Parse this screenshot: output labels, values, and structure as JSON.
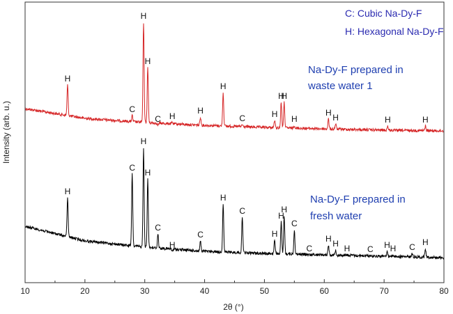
{
  "chart_data": {
    "type": "line",
    "title": "",
    "xlabel": "2θ (°)",
    "ylabel": "Intensity (arb. u.)",
    "xlim": [
      10,
      80
    ],
    "xticks": [
      10,
      20,
      30,
      40,
      50,
      60,
      70,
      80
    ],
    "yticks_shown": false,
    "legend": [
      "C: Cubic Na-Dy-F",
      "H: Hexagonal Na-Dy-F"
    ],
    "legend_position": "top-right",
    "colors": {
      "series_waste": "#d62728",
      "series_fresh": "#000000",
      "legend_text": "#2a2ab0"
    },
    "series": [
      {
        "name": "Na-Dy-F prepared in waste water 1",
        "label_lines": [
          "Na-Dy-F prepared in",
          "waste water 1"
        ],
        "color": "#d62728",
        "baseline": [
          [
            10,
            156
          ],
          [
            20,
            170
          ],
          [
            30,
            176
          ],
          [
            40,
            180
          ],
          [
            50,
            183
          ],
          [
            60,
            185
          ],
          [
            70,
            187
          ],
          [
            80,
            188
          ]
        ],
        "peaks": [
          {
            "x": 17.1,
            "y": 122,
            "label": "H"
          },
          {
            "x": 27.9,
            "y": 166,
            "label": "C"
          },
          {
            "x": 29.8,
            "y": 32,
            "label": "H"
          },
          {
            "x": 30.5,
            "y": 97,
            "label": "H"
          },
          {
            "x": 32.2,
            "y": 180,
            "label": "C"
          },
          {
            "x": 34.6,
            "y": 176,
            "label": "H"
          },
          {
            "x": 39.3,
            "y": 168,
            "label": "H"
          },
          {
            "x": 43.1,
            "y": 133,
            "label": "H"
          },
          {
            "x": 46.3,
            "y": 179,
            "label": "C"
          },
          {
            "x": 51.7,
            "y": 173,
            "label": "H"
          },
          {
            "x": 52.8,
            "y": 147,
            "label": "H"
          },
          {
            "x": 53.3,
            "y": 147,
            "label": "H"
          },
          {
            "x": 55.0,
            "y": 180,
            "label": "H"
          },
          {
            "x": 60.7,
            "y": 171,
            "label": "H"
          },
          {
            "x": 61.9,
            "y": 178,
            "label": "H"
          },
          {
            "x": 70.6,
            "y": 181,
            "label": "H"
          },
          {
            "x": 76.9,
            "y": 181,
            "label": "H"
          }
        ]
      },
      {
        "name": "Na-Dy-F prepared in fresh water",
        "label_lines": [
          "Na-Dy-F prepared in",
          "fresh water"
        ],
        "color": "#000000",
        "baseline": [
          [
            10,
            325
          ],
          [
            20,
            346
          ],
          [
            30,
            355
          ],
          [
            40,
            361
          ],
          [
            50,
            364
          ],
          [
            60,
            366
          ],
          [
            70,
            368
          ],
          [
            80,
            370
          ]
        ],
        "peaks": [
          {
            "x": 17.1,
            "y": 284,
            "label": "H"
          },
          {
            "x": 27.9,
            "y": 250,
            "label": "C"
          },
          {
            "x": 29.8,
            "y": 212,
            "label": "H"
          },
          {
            "x": 30.5,
            "y": 257,
            "label": "H"
          },
          {
            "x": 32.2,
            "y": 336,
            "label": "C"
          },
          {
            "x": 34.6,
            "y": 361,
            "label": "H"
          },
          {
            "x": 39.3,
            "y": 346,
            "label": "C"
          },
          {
            "x": 43.1,
            "y": 293,
            "label": "H"
          },
          {
            "x": 46.3,
            "y": 312,
            "label": "C"
          },
          {
            "x": 51.7,
            "y": 345,
            "label": "H"
          },
          {
            "x": 52.8,
            "y": 319,
            "label": "H"
          },
          {
            "x": 53.3,
            "y": 310,
            "label": "H"
          },
          {
            "x": 55.0,
            "y": 330,
            "label": "C"
          },
          {
            "x": 57.5,
            "y": 366,
            "label": "C"
          },
          {
            "x": 60.7,
            "y": 352,
            "label": "H"
          },
          {
            "x": 61.9,
            "y": 359,
            "label": "H"
          },
          {
            "x": 63.8,
            "y": 366,
            "label": "H"
          },
          {
            "x": 67.7,
            "y": 367,
            "label": "C"
          },
          {
            "x": 70.5,
            "y": 361,
            "label": "H"
          },
          {
            "x": 71.5,
            "y": 366,
            "label": "H"
          },
          {
            "x": 74.7,
            "y": 364,
            "label": "C"
          },
          {
            "x": 76.9,
            "y": 357,
            "label": "H"
          }
        ]
      }
    ]
  }
}
